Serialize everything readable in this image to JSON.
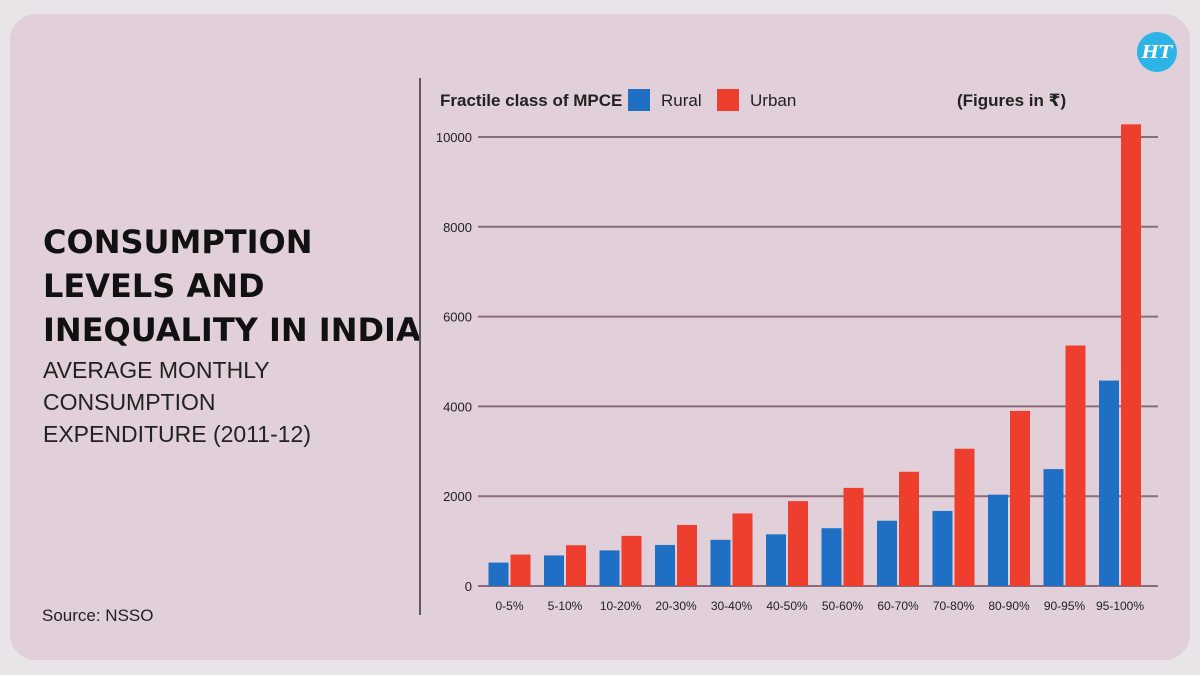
{
  "heading": {
    "title": "CONSUMPTION LEVELS AND INEQUALITY IN INDIA",
    "subtitle": "AVERAGE MONTHLY CONSUMPTION EXPENDITURE (2011-12)"
  },
  "source": "Source: NSSO",
  "logo_text": "HT",
  "colors": {
    "background": "#e1cfd9",
    "rural": "#1f6fc4",
    "urban": "#ee3e2d",
    "gridline": "#8c6b7d"
  },
  "chart_data": {
    "type": "bar",
    "legend_title": "Fractile class of MPCE",
    "units_note": "(Figures in ₹)",
    "legend_position": "top",
    "grid": true,
    "categories": [
      "0-5%",
      "5-10%",
      "10-20%",
      "20-30%",
      "30-40%",
      "40-50%",
      "50-60%",
      "60-70%",
      "70-80%",
      "80-90%",
      "90-95%",
      "95-100%"
    ],
    "series": [
      {
        "name": "Rural",
        "color": "#1f6fc4",
        "values": [
          521,
          681,
          793,
          914,
          1029,
          1151,
          1287,
          1453,
          1672,
          2034,
          2603,
          4575
        ]
      },
      {
        "name": "Urban",
        "color": "#ee3e2d",
        "values": [
          700,
          908,
          1117,
          1360,
          1616,
          1890,
          2185,
          2544,
          3057,
          3900,
          5356,
          10282
        ]
      }
    ],
    "yticks": [
      0,
      2000,
      4000,
      6000,
      8000,
      10000
    ],
    "ylim": [
      0,
      10500
    ]
  }
}
